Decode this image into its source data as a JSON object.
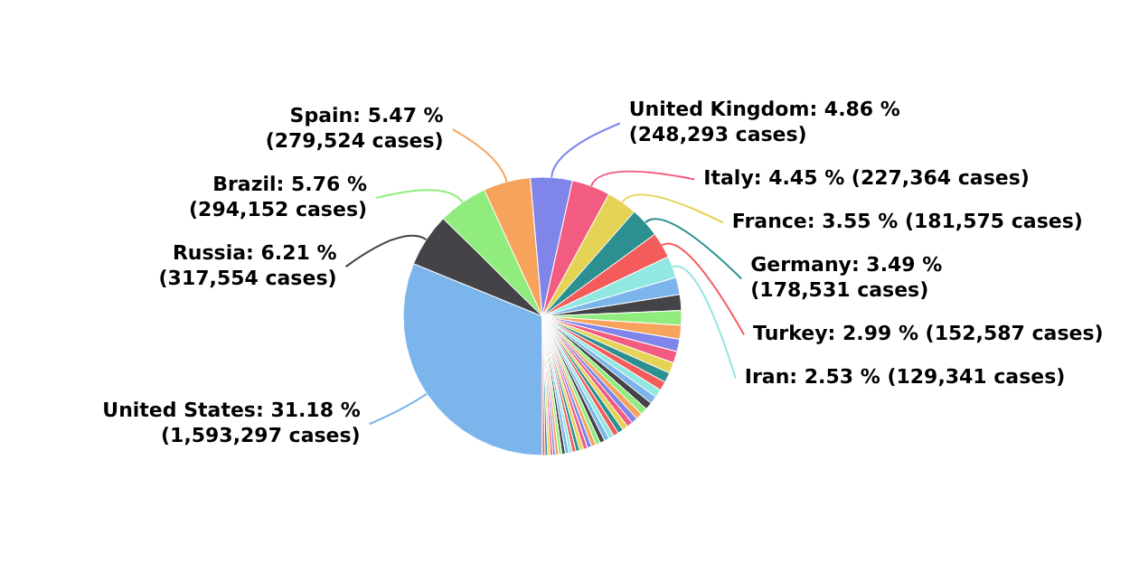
{
  "chart_data": {
    "type": "pie",
    "categories": [
      "United States",
      "Russia",
      "Brazil",
      "Spain",
      "United Kingdom",
      "Italy",
      "France",
      "Germany",
      "Turkey",
      "Iran",
      null,
      null,
      null,
      null,
      null,
      null,
      null,
      null,
      null,
      null,
      null,
      null,
      null,
      null,
      null,
      null,
      null,
      null,
      null,
      null,
      null,
      null,
      null,
      null,
      null,
      null,
      null,
      null,
      null,
      null,
      null,
      null,
      null,
      null,
      null,
      null,
      null,
      null,
      null
    ],
    "values": [
      31.18,
      6.21,
      5.76,
      5.47,
      4.86,
      4.45,
      3.55,
      3.49,
      2.99,
      2.53,
      2.0,
      1.85,
      1.7,
      1.6,
      1.45,
      1.35,
      1.25,
      1.15,
      1.05,
      0.95,
      0.9,
      0.85,
      0.8,
      0.75,
      0.7,
      0.68,
      0.66,
      0.64,
      0.62,
      0.6,
      0.58,
      0.56,
      0.54,
      0.52,
      0.5,
      0.48,
      0.46,
      0.44,
      0.42,
      0.4,
      0.42,
      0.4,
      0.38,
      0.36,
      0.3,
      0.3,
      0.3,
      0.3,
      0.3
    ],
    "value_labels": [
      "31.18 % (1,593,297 cases)",
      "6.21 % (317,554 cases)",
      "5.76 % (294,152 cases)",
      "5.47 % (279,524 cases)",
      "4.86 % (248,293 cases)",
      "4.45 % (227,364 cases)",
      "3.55 % (181,575 cases)",
      "3.49 % (178,531 cases)",
      "2.99 % (152,587 cases)",
      "2.53 % (129,341 cases)",
      null,
      null,
      null,
      null,
      null,
      null,
      null,
      null,
      null,
      null,
      null,
      null,
      null,
      null,
      null,
      null,
      null,
      null,
      null,
      null,
      null,
      null,
      null,
      null,
      null,
      null,
      null,
      null,
      null,
      null,
      null,
      null,
      null,
      null,
      null,
      null,
      null,
      null,
      null
    ],
    "colors": [
      "#7cb5ec",
      "#434348",
      "#90ed7d",
      "#f7a35c",
      "#8085e9",
      "#f15c80",
      "#e4d354",
      "#2b908f",
      "#f45b5b",
      "#91e8e1",
      "#7cb5ec",
      "#434348",
      "#90ed7d",
      "#f7a35c",
      "#8085e9",
      "#f15c80",
      "#e4d354",
      "#2b908f",
      "#f45b5b",
      "#91e8e1",
      "#7cb5ec",
      "#434348",
      "#90ed7d",
      "#f7a35c",
      "#8085e9",
      "#f15c80",
      "#e4d354",
      "#2b908f",
      "#f45b5b",
      "#91e8e1",
      "#7cb5ec",
      "#434348",
      "#90ed7d",
      "#f7a35c",
      "#8085e9",
      "#f15c80",
      "#e4d354",
      "#2b908f",
      "#f45b5b",
      "#91e8e1",
      "#7cb5ec",
      "#434348",
      "#90ed7d",
      "#f7a35c",
      "#8085e9",
      "#f15c80",
      "#e4d354",
      "#2b908f",
      "#f45b5b"
    ]
  }
}
